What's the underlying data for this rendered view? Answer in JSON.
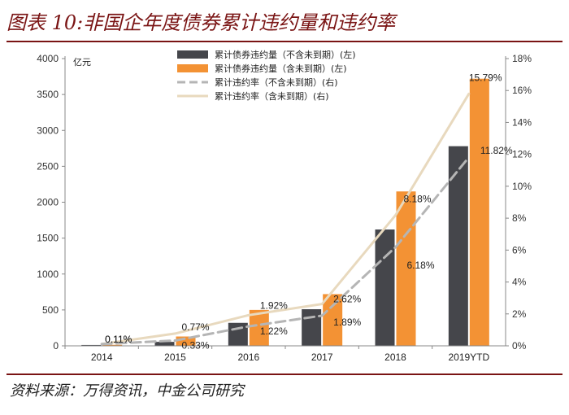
{
  "title": "图表 10:非国企年度债券累计违约量和违约率",
  "source": "资料来源：万得资讯，中金公司研究",
  "chart_data": {
    "type": "bar+line",
    "categories": [
      "2014",
      "2015",
      "2016",
      "2017",
      "2018",
      "2019YTD"
    ],
    "left_axis": {
      "unit": "亿元",
      "min": 0,
      "max": 4000,
      "step": 500,
      "ticks": [
        "0",
        "500",
        "1000",
        "1500",
        "2000",
        "2500",
        "3000",
        "3500",
        "4000"
      ]
    },
    "right_axis": {
      "min": 0,
      "max": 18,
      "step": 2,
      "ticks": [
        "0%",
        "2%",
        "4%",
        "6%",
        "8%",
        "10%",
        "12%",
        "14%",
        "16%",
        "18%"
      ]
    },
    "bar_series": [
      {
        "name": "累计债券违约量（不含未到期）(左)",
        "color": "#45464b",
        "values": [
          12,
          55,
          320,
          510,
          1620,
          2780
        ]
      },
      {
        "name": "累计债券违约量（含未到期）(左)",
        "color": "#f39234",
        "values": [
          14,
          130,
          500,
          720,
          2150,
          3720
        ]
      }
    ],
    "line_series": [
      {
        "name": "累计违约率（不含未到期）(右)",
        "color": "#b5b5b5",
        "dashed": true,
        "values": [
          0.11,
          0.33,
          1.22,
          1.89,
          6.18,
          11.82
        ],
        "labels": [
          "0.11%",
          "0.33%",
          "1.22%",
          "1.89%",
          "6.18%",
          "11.82%"
        ]
      },
      {
        "name": "累计违约率（含未到期）(右)",
        "color": "#e8d9be",
        "dashed": false,
        "values": [
          0.11,
          0.77,
          1.92,
          2.62,
          8.18,
          15.79
        ],
        "labels": [
          "0.11%",
          "0.77%",
          "1.92%",
          "2.62%",
          "8.18%",
          "15.79%"
        ]
      }
    ]
  }
}
